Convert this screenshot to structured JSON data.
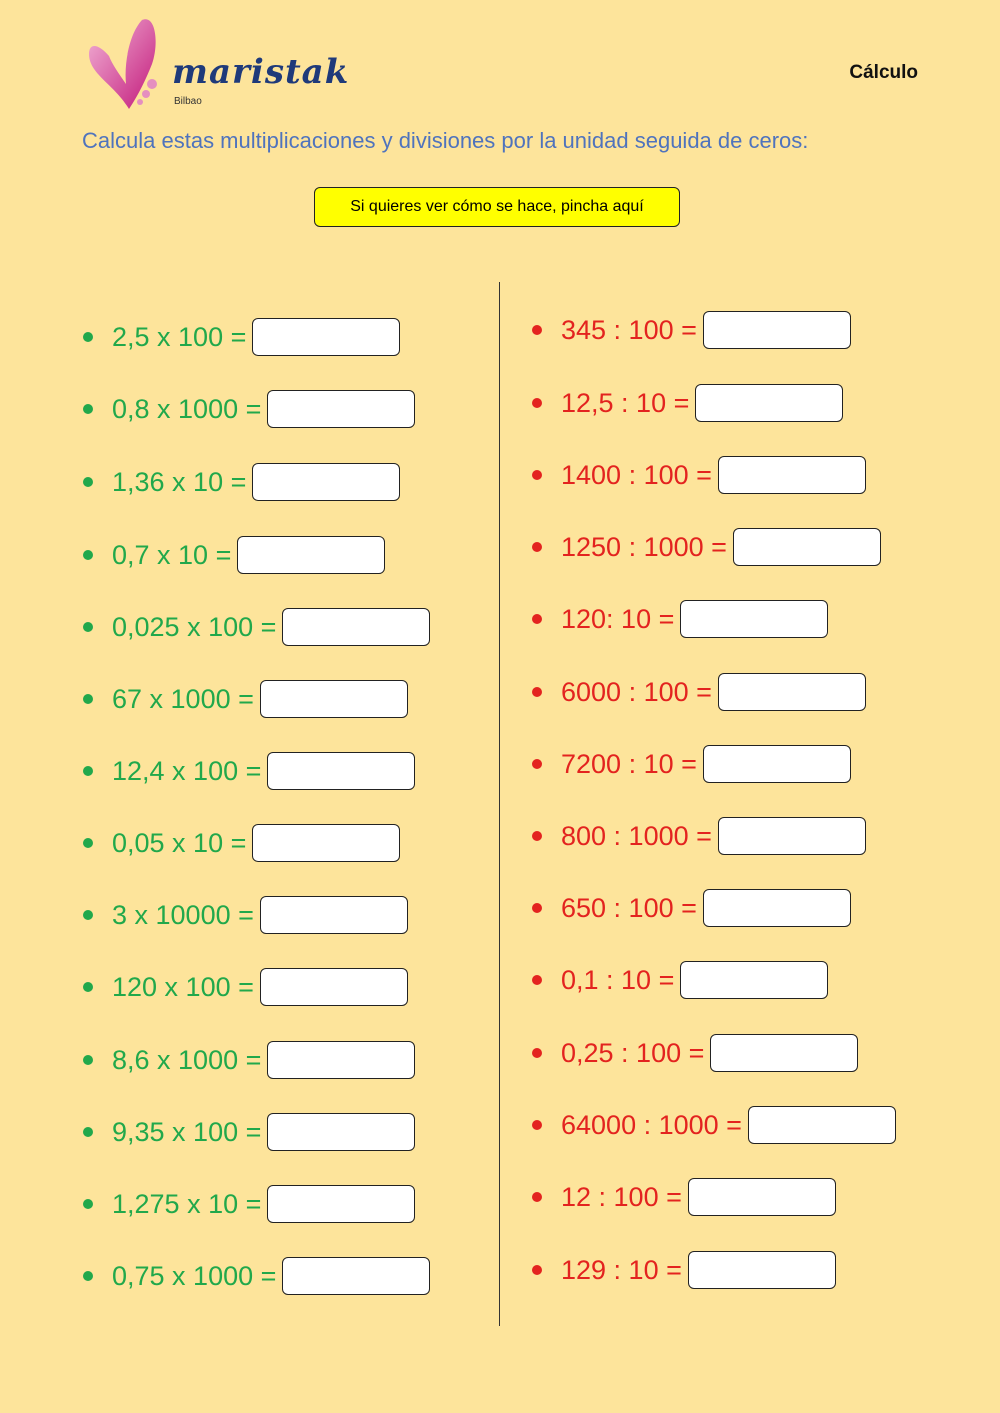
{
  "header": {
    "logo_text": "maristak",
    "logo_subtext": "Bilbao",
    "subject": "Cálculo"
  },
  "instruction": "Calcula estas multiplicaciones y divisiones por la unidad seguida de ceros:",
  "help_button": "Si quieres ver cómo se hace, pincha aquí",
  "colors": {
    "background": "#fde49b",
    "multiplication": "#21a84b",
    "division": "#e3231f",
    "instruction": "#4f73bd",
    "button": "#ffff00"
  },
  "multiplications": [
    {
      "expr": "2,5 x 100 =",
      "answer": ""
    },
    {
      "expr": "0,8 x 1000 =",
      "answer": ""
    },
    {
      "expr": "1,36 x 10 =",
      "answer": ""
    },
    {
      "expr": "0,7 x 10 =",
      "answer": ""
    },
    {
      "expr": "0,025 x 100 =",
      "answer": ""
    },
    {
      "expr": "67 x 1000 =",
      "answer": ""
    },
    {
      "expr": "12,4 x 100 =",
      "answer": ""
    },
    {
      "expr": "0,05 x 10 =",
      "answer": ""
    },
    {
      "expr": "3 x 10000 =",
      "answer": ""
    },
    {
      "expr": "120 x 100 =",
      "answer": ""
    },
    {
      "expr": "8,6 x 1000 =",
      "answer": ""
    },
    {
      "expr": "9,35 x 100 =",
      "answer": ""
    },
    {
      "expr": "1,275 x 10 =",
      "answer": ""
    },
    {
      "expr": "0,75 x 1000 =",
      "answer": ""
    }
  ],
  "divisions": [
    {
      "expr": "345 : 100 =",
      "answer": ""
    },
    {
      "expr": "12,5 : 10 =",
      "answer": ""
    },
    {
      "expr": "1400 : 100 =",
      "answer": ""
    },
    {
      "expr": "1250 : 1000 =",
      "answer": ""
    },
    {
      "expr": "120: 10 =",
      "answer": ""
    },
    {
      "expr": "6000 : 100 =",
      "answer": ""
    },
    {
      "expr": "7200 : 10 =",
      "answer": ""
    },
    {
      "expr": "800 : 1000 =",
      "answer": ""
    },
    {
      "expr": "650 : 100 =",
      "answer": ""
    },
    {
      "expr": "0,1 : 10 =",
      "answer": ""
    },
    {
      "expr": "0,25 : 100 =",
      "answer": ""
    },
    {
      "expr": "64000 : 1000 =",
      "answer": ""
    },
    {
      "expr": "12 : 100 =",
      "answer": ""
    },
    {
      "expr": "129 : 10 =",
      "answer": ""
    }
  ]
}
